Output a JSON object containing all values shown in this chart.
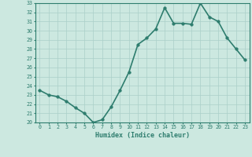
{
  "x": [
    0,
    1,
    2,
    3,
    4,
    5,
    6,
    7,
    8,
    9,
    10,
    11,
    12,
    13,
    14,
    15,
    16,
    17,
    18,
    19,
    20,
    21,
    22,
    23
  ],
  "y": [
    23.5,
    23.0,
    22.8,
    22.3,
    21.6,
    21.0,
    20.0,
    20.3,
    21.7,
    23.5,
    25.5,
    28.5,
    29.2,
    30.2,
    32.5,
    30.8,
    30.8,
    30.7,
    33.0,
    31.5,
    31.0,
    29.2,
    28.0,
    26.8
  ],
  "title": "",
  "xlabel": "Humidex (Indice chaleur)",
  "ylabel": "",
  "xlim": [
    -0.5,
    23.5
  ],
  "ylim": [
    20,
    33
  ],
  "yticks": [
    20,
    21,
    22,
    23,
    24,
    25,
    26,
    27,
    28,
    29,
    30,
    31,
    32,
    33
  ],
  "xticks": [
    0,
    1,
    2,
    3,
    4,
    5,
    6,
    7,
    8,
    9,
    10,
    11,
    12,
    13,
    14,
    15,
    16,
    17,
    18,
    19,
    20,
    21,
    22,
    23
  ],
  "line_color": "#2e7d6e",
  "marker_color": "#2e7d6e",
  "bg_color": "#cce8e0",
  "grid_color": "#aacfc8",
  "xlabel_color": "#2e7d6e",
  "tick_color": "#2e7d6e",
  "line_width": 1.2,
  "marker_size": 2.5
}
